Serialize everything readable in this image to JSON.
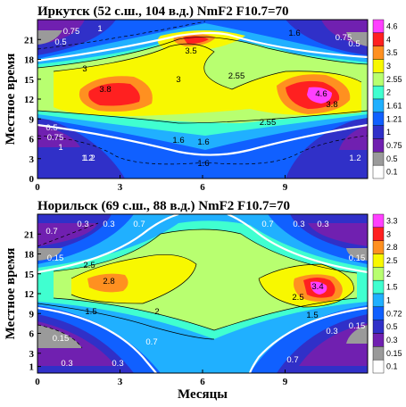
{
  "chart_data": [
    {
      "type": "contour",
      "title": "Иркутск (52 с.ш., 104 в.д.)  NmF2   F10.7=70",
      "xlabel": "",
      "ylabel": "Местное время",
      "xticks": [
        "0",
        "3",
        "6",
        "9"
      ],
      "yticks": [
        "0",
        "3",
        "6",
        "9",
        "12",
        "15",
        "18",
        "21"
      ],
      "xlim": [
        0,
        12
      ],
      "ylim": [
        0,
        24
      ],
      "colorbar_levels": [
        "4.6",
        "4",
        "3.5",
        "3",
        "2.55",
        "2",
        "1.61",
        "1.21",
        "1",
        "0.75",
        "0.5",
        "0.1"
      ],
      "colorbar_colors": [
        "#ff40ff",
        "#ff2020",
        "#ff9020",
        "#f8f800",
        "#b8ff70",
        "#40ffd0",
        "#20b0ff",
        "#1060ff",
        "#3030c8",
        "#7020b0",
        "#9a9a9a",
        "#ffffff"
      ],
      "contour_labels": [
        "0.5",
        "0.75",
        "1",
        "1.2",
        "1.6",
        "3.5",
        "1.6",
        "0.75",
        "0.5",
        "3",
        "3.8",
        "3",
        "2.55",
        "4.6",
        "3.8",
        "2.55",
        "0.5",
        "0.75",
        "1",
        "1.2",
        "1.6",
        "1.6",
        "1.2"
      ],
      "peaks": [
        {
          "x": 3.2,
          "y": 12.5,
          "label": "3.8"
        },
        {
          "x": 10.2,
          "y": 12.5,
          "label": "4.6"
        }
      ]
    },
    {
      "type": "contour",
      "title": "Норильск (69 с.ш., 88 в.д.)   NmF2    F10.7=70",
      "xlabel": "Месяцы",
      "ylabel": "Местное время",
      "xticks": [
        "0",
        "3",
        "6",
        "9"
      ],
      "yticks": [
        "1",
        "3",
        "6",
        "9",
        "12",
        "15",
        "18",
        "21"
      ],
      "xlim": [
        0,
        12
      ],
      "ylim": [
        0,
        24
      ],
      "colorbar_levels": [
        "3.3",
        "3",
        "2.8",
        "2.5",
        "2",
        "1.5",
        "1",
        "0.72",
        "0.5",
        "0.3",
        "0.15",
        "0.1"
      ],
      "colorbar_colors": [
        "#ff40ff",
        "#ff2020",
        "#ff9020",
        "#f8f800",
        "#b8ff70",
        "#40ffd0",
        "#20b0ff",
        "#1060ff",
        "#3030c8",
        "#7020b0",
        "#9a9a9a",
        "#ffffff"
      ],
      "contour_labels": [
        "0.7",
        "0.3",
        "0.3",
        "0.7",
        "0.7",
        "0.3",
        "0.3",
        "0.15",
        "0.15",
        "2.5",
        "2.8",
        "1.5",
        "2",
        "2.5",
        "3.4",
        "1.5",
        "0.15",
        "0.7",
        "0.3",
        "0.3",
        "0.15",
        "0.3",
        "0.7"
      ],
      "peaks": [
        {
          "x": 2.8,
          "y": 13.5,
          "label": "2.8"
        },
        {
          "x": 10.2,
          "y": 13.2,
          "label": "3.4"
        }
      ]
    }
  ]
}
